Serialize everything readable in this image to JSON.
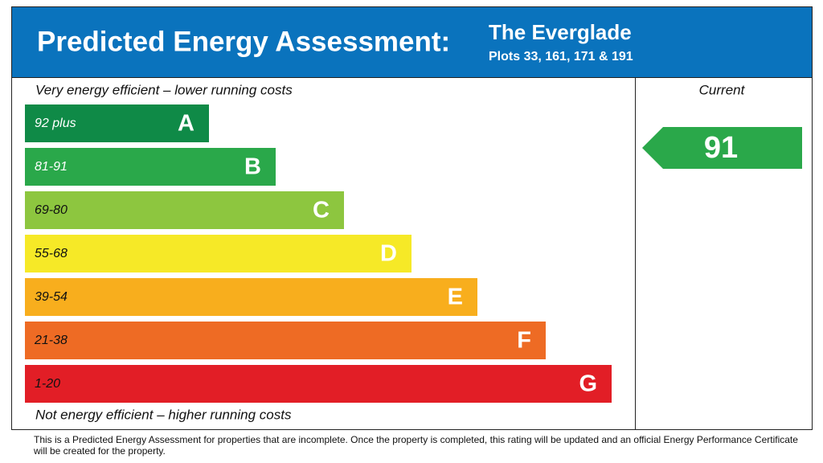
{
  "header": {
    "title": "Predicted Energy Assessment:",
    "name": "The Everglade",
    "plots": "Plots 33, 161, 171 & 191"
  },
  "top_note": "Very energy efficient – lower running costs",
  "bottom_note": "Not energy efficient – higher running costs",
  "bands": [
    {
      "range": "92 plus",
      "letter": "A"
    },
    {
      "range": "81-91",
      "letter": "B"
    },
    {
      "range": "69-80",
      "letter": "C"
    },
    {
      "range": "55-68",
      "letter": "D"
    },
    {
      "range": "39-54",
      "letter": "E"
    },
    {
      "range": "21-38",
      "letter": "F"
    },
    {
      "range": "1-20",
      "letter": "G"
    }
  ],
  "current": {
    "label": "Current",
    "value": "91"
  },
  "footer": "This is a Predicted Energy Assessment for properties that are incomplete. Once the property is completed, this rating will be updated and an official Energy Performance Certificate will be created for the property."
}
